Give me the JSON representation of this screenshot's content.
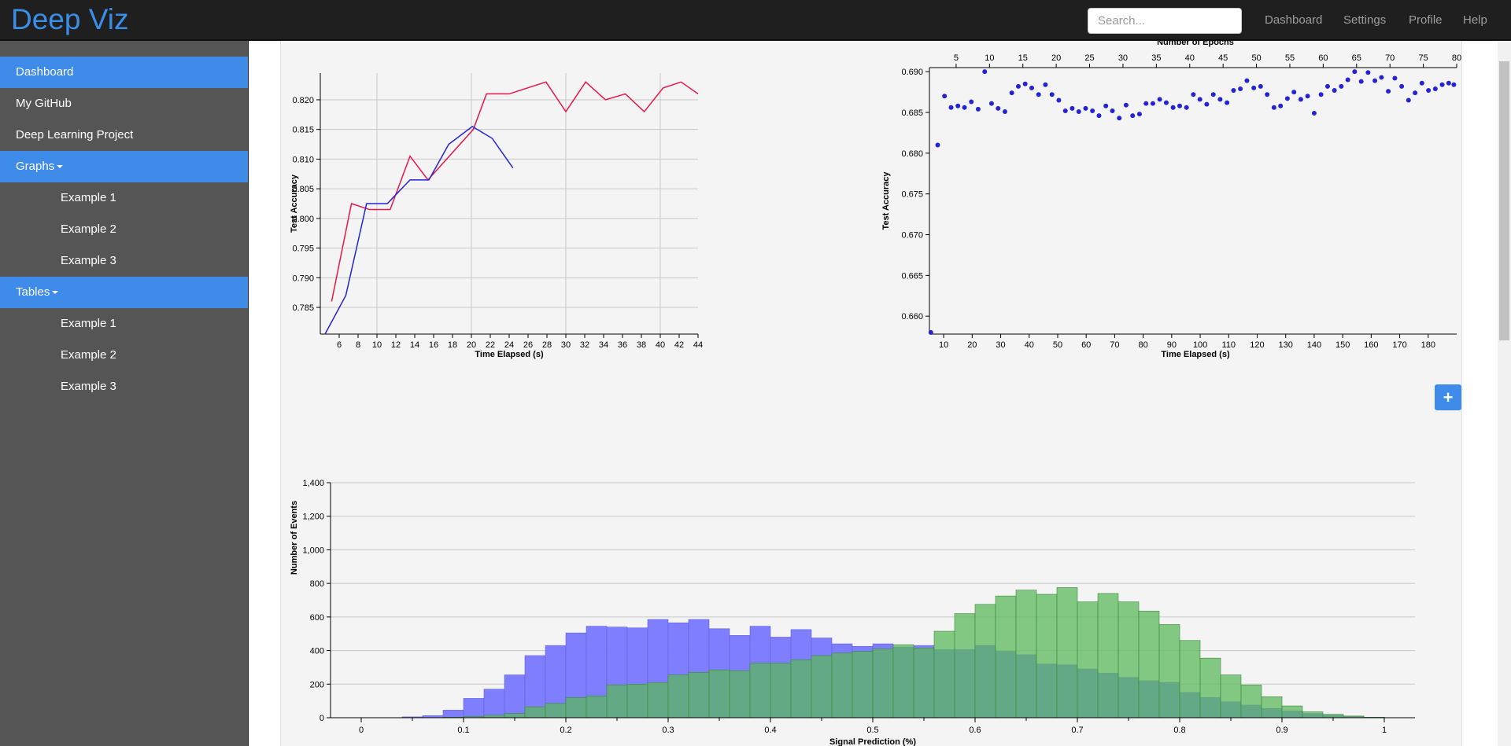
{
  "header": {
    "brand": "Deep Viz",
    "search_placeholder": "Search...",
    "nav": [
      "Dashboard",
      "Settings",
      "Profile",
      "Help"
    ]
  },
  "sidebar": {
    "items": [
      {
        "label": "Dashboard",
        "level": "top",
        "active": true
      },
      {
        "label": "My GitHub",
        "level": "top",
        "active": false
      },
      {
        "label": "Deep Learning Project",
        "level": "top",
        "active": false
      },
      {
        "label": "Graphs",
        "level": "top",
        "active": true,
        "dropdown": true
      },
      {
        "label": "Example 1",
        "level": "sub",
        "active": false
      },
      {
        "label": "Example 2",
        "level": "sub",
        "active": false
      },
      {
        "label": "Example 3",
        "level": "sub",
        "active": false
      },
      {
        "label": "Tables",
        "level": "top",
        "active": true,
        "dropdown": true
      },
      {
        "label": "Example 1",
        "level": "sub",
        "active": false
      },
      {
        "label": "Example 2",
        "level": "sub",
        "active": false
      },
      {
        "label": "Example 3",
        "level": "sub",
        "active": false
      }
    ]
  },
  "add_button": {
    "label": "+"
  },
  "colors": {
    "accent": "#3e8bea",
    "brand": "#3a8ee8",
    "topbar": "#1f1f1f",
    "sidebar": "#555555",
    "red_series": "#e8174a",
    "blue_series": "#2424d6",
    "hist_blue": "#7777ff",
    "hist_green": "#5cb85c"
  },
  "chart_data": [
    {
      "type": "line",
      "title": "",
      "xlabel": "Time Elapsed (s)",
      "ylabel": "Test Accuracy",
      "xlim": [
        4,
        44
      ],
      "ylim": [
        0.7805,
        0.8245
      ],
      "xticks": [
        6,
        8,
        10,
        12,
        14,
        16,
        18,
        20,
        22,
        24,
        26,
        28,
        30,
        32,
        34,
        36,
        38,
        40,
        42,
        44
      ],
      "yticks": [
        0.785,
        0.79,
        0.795,
        0.8,
        0.805,
        0.81,
        0.815,
        0.82
      ],
      "grid": true,
      "series": [
        {
          "color": "#e8174a",
          "points": [
            [
              5.2,
              0.786
            ],
            [
              7.3,
              0.8025
            ],
            [
              9.2,
              0.8015
            ],
            [
              11.4,
              0.8015
            ],
            [
              13.5,
              0.8105
            ],
            [
              15.4,
              0.8065
            ],
            [
              20.2,
              0.815
            ],
            [
              21.6,
              0.821
            ],
            [
              24.0,
              0.821
            ],
            [
              27.9,
              0.823
            ],
            [
              30.0,
              0.818
            ],
            [
              32.1,
              0.823
            ],
            [
              34.2,
              0.82
            ],
            [
              36.3,
              0.821
            ],
            [
              38.3,
              0.818
            ],
            [
              40.3,
              0.822
            ],
            [
              42.2,
              0.823
            ],
            [
              44.0,
              0.821
            ]
          ]
        },
        {
          "color": "#2424d6",
          "points": [
            [
              4.5,
              0.7805
            ],
            [
              6.7,
              0.787
            ],
            [
              8.9,
              0.8025
            ],
            [
              11.1,
              0.8025
            ],
            [
              13.5,
              0.8065
            ],
            [
              15.5,
              0.8065
            ],
            [
              17.6,
              0.8125
            ],
            [
              20.1,
              0.8155
            ],
            [
              22.2,
              0.8135
            ],
            [
              24.4,
              0.8085
            ]
          ]
        }
      ]
    },
    {
      "type": "scatter",
      "title": "",
      "xlabel": "Time Elapsed (s)",
      "x2label": "Number of Epochs",
      "ylabel": "Test Accuracy",
      "xlim": [
        5,
        190
      ],
      "x2lim": [
        1,
        80
      ],
      "ylim": [
        0.6578,
        0.6905
      ],
      "xticks": [
        10,
        20,
        30,
        40,
        50,
        60,
        70,
        80,
        90,
        100,
        110,
        120,
        130,
        140,
        150,
        160,
        170,
        180
      ],
      "x2ticks": [
        5,
        10,
        15,
        20,
        25,
        30,
        35,
        40,
        45,
        50,
        55,
        60,
        65,
        70,
        75,
        80
      ],
      "yticks": [
        0.66,
        0.665,
        0.67,
        0.675,
        0.68,
        0.685,
        0.69
      ],
      "color": "#2424d6",
      "x": [
        5.5,
        7.9,
        10.3,
        12.6,
        15.0,
        17.3,
        19.7,
        22.1,
        24.4,
        26.8,
        29.1,
        31.5,
        33.9,
        36.2,
        38.6,
        40.9,
        43.3,
        45.7,
        48.0,
        50.4,
        52.7,
        55.1,
        57.4,
        59.8,
        62.2,
        64.5,
        66.9,
        69.2,
        71.6,
        74.0,
        76.3,
        78.7,
        81.0,
        83.4,
        85.8,
        88.1,
        90.5,
        92.8,
        95.2,
        97.6,
        99.9,
        102.3,
        104.6,
        107.0,
        109.4,
        111.7,
        114.1,
        116.4,
        118.8,
        121.2,
        123.5,
        125.9,
        128.2,
        130.6,
        132.9,
        135.3,
        137.7,
        140.0,
        142.4,
        144.7,
        147.1,
        149.5,
        151.8,
        154.2,
        156.5,
        158.9,
        161.3,
        163.6,
        166.0,
        168.3,
        170.7,
        173.1,
        175.4,
        177.8,
        180.1,
        182.5,
        184.9,
        187.2,
        189.0
      ],
      "y": [
        0.658,
        0.681,
        0.687,
        0.6856,
        0.6858,
        0.6856,
        0.6863,
        0.6854,
        0.69,
        0.6861,
        0.6855,
        0.6851,
        0.6874,
        0.6882,
        0.6885,
        0.688,
        0.6872,
        0.6884,
        0.6872,
        0.6865,
        0.6852,
        0.6855,
        0.6851,
        0.6855,
        0.6852,
        0.6846,
        0.6858,
        0.6852,
        0.6843,
        0.6859,
        0.6846,
        0.6848,
        0.6861,
        0.6861,
        0.6866,
        0.6862,
        0.6856,
        0.6858,
        0.6856,
        0.6872,
        0.6866,
        0.686,
        0.6872,
        0.6866,
        0.6862,
        0.6877,
        0.6879,
        0.6889,
        0.688,
        0.6882,
        0.6872,
        0.6856,
        0.6858,
        0.6867,
        0.6875,
        0.6866,
        0.687,
        0.6849,
        0.6872,
        0.6882,
        0.6877,
        0.6882,
        0.689,
        0.69,
        0.6888,
        0.6899,
        0.6889,
        0.6893,
        0.6876,
        0.6892,
        0.6882,
        0.6865,
        0.6874,
        0.6886,
        0.6877,
        0.6879,
        0.6884,
        0.6886,
        0.6884
      ]
    },
    {
      "type": "histogram",
      "title": "",
      "xlabel": "Signal Prediction (%)",
      "ylabel": "Number of Events",
      "xlim": [
        -0.03,
        1.03
      ],
      "ylim": [
        0,
        1400
      ],
      "xticks": [
        0,
        0.1,
        0.2,
        0.3,
        0.4,
        0.5,
        0.6,
        0.7,
        0.8,
        0.9,
        1
      ],
      "ytick_labels": [
        "0",
        "200",
        "400",
        "600",
        "800",
        "1,000",
        "1,200",
        "1,400"
      ],
      "bin_edges_start": 0,
      "bin_width": 0.02,
      "series": [
        {
          "color": "#7777ff",
          "values": [
            0,
            0,
            5,
            12,
            45,
            115,
            170,
            255,
            370,
            430,
            505,
            545,
            540,
            535,
            585,
            565,
            585,
            530,
            490,
            545,
            480,
            525,
            475,
            440,
            425,
            440,
            420,
            430,
            405,
            405,
            430,
            395,
            375,
            320,
            315,
            290,
            265,
            240,
            220,
            210,
            150,
            120,
            95,
            75,
            55,
            40,
            25,
            15,
            8,
            3
          ]
        },
        {
          "color": "#5cb85c",
          "values": [
            0,
            0,
            0,
            0,
            3,
            8,
            15,
            25,
            65,
            85,
            120,
            130,
            195,
            200,
            210,
            255,
            270,
            285,
            280,
            325,
            325,
            345,
            370,
            385,
            395,
            410,
            435,
            415,
            515,
            620,
            675,
            725,
            760,
            735,
            775,
            690,
            740,
            690,
            635,
            555,
            460,
            355,
            255,
            195,
            125,
            70,
            35,
            20,
            10,
            3
          ]
        }
      ]
    }
  ]
}
